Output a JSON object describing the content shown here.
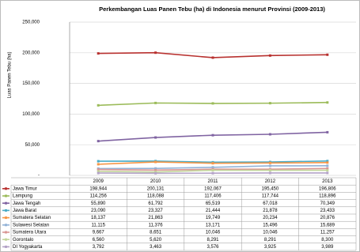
{
  "chart_data": {
    "type": "line",
    "title": "Perkembangan Luas Panen Tebu (ha) di Indonesia menurut Provinsi (2009-2013)",
    "y_label": "Luas Panen Tebu (ha)",
    "categories": [
      "2009",
      "2010",
      "2011",
      "2012",
      "2013"
    ],
    "ylim": [
      0,
      250000
    ],
    "yticks": [
      {
        "value": 0,
        "label": "-"
      },
      {
        "value": 50000,
        "label": "50,000"
      },
      {
        "value": 100000,
        "label": "100,000"
      },
      {
        "value": 150000,
        "label": "150,000"
      },
      {
        "value": 200000,
        "label": "200,000"
      },
      {
        "value": 250000,
        "label": "250,000"
      }
    ],
    "grid": true,
    "series": [
      {
        "name": "Jawa Timur",
        "color": "#b8312f",
        "values": [
          198944,
          200131,
          192067,
          195450,
          196806
        ],
        "value_labels": [
          "198,944",
          "200,131",
          "192,067",
          "195,450",
          "196,806"
        ]
      },
      {
        "name": "Lampung",
        "color": "#9bbb59",
        "values": [
          114256,
          118088,
          117406,
          117744,
          118896
        ],
        "value_labels": [
          "114,256",
          "118,088",
          "117,406",
          "117,744",
          "118,896"
        ]
      },
      {
        "name": "Jawa Tengah",
        "color": "#8064a2",
        "values": [
          55890,
          61792,
          65519,
          67018,
          70349
        ],
        "value_labels": [
          "55,890",
          "61,792",
          "65,519",
          "67,018",
          "70,349"
        ]
      },
      {
        "name": "Jawa Barat",
        "color": "#4bacc6",
        "values": [
          23090,
          23327,
          21444,
          21878,
          23433
        ],
        "value_labels": [
          "23,090",
          "23,327",
          "21,444",
          "21,878",
          "23,433"
        ]
      },
      {
        "name": "Sumatera Selatan",
        "color": "#f79646",
        "values": [
          18137,
          21863,
          19749,
          20234,
          20876
        ],
        "value_labels": [
          "18,137",
          "21,863",
          "19,749",
          "20,234",
          "20,876"
        ]
      },
      {
        "name": "Sulawesi Selatan",
        "color": "#93b3d7",
        "values": [
          11115,
          11376,
          13171,
          15496,
          15689
        ],
        "value_labels": [
          "11,115",
          "11,376",
          "13,171",
          "15,496",
          "15,689"
        ]
      },
      {
        "name": "Sumatera Utara",
        "color": "#d99694",
        "values": [
          9667,
          8651,
          10046,
          10046,
          11257
        ],
        "value_labels": [
          "9,667",
          "8,651",
          "10,046",
          "10,046",
          "11,257"
        ]
      },
      {
        "name": "Gorontalo",
        "color": "#c3d69b",
        "values": [
          6560,
          5620,
          8291,
          8291,
          8300
        ],
        "value_labels": [
          "6,560",
          "5,620",
          "8,291",
          "8,291",
          "8,300"
        ]
      },
      {
        "name": "DI Yogyakarta",
        "color": "#b3a2c7",
        "values": [
          3792,
          3463,
          3576,
          3925,
          3989
        ],
        "value_labels": [
          "3,792",
          "3,463",
          "3,576",
          "3,925",
          "3,989"
        ]
      }
    ]
  }
}
